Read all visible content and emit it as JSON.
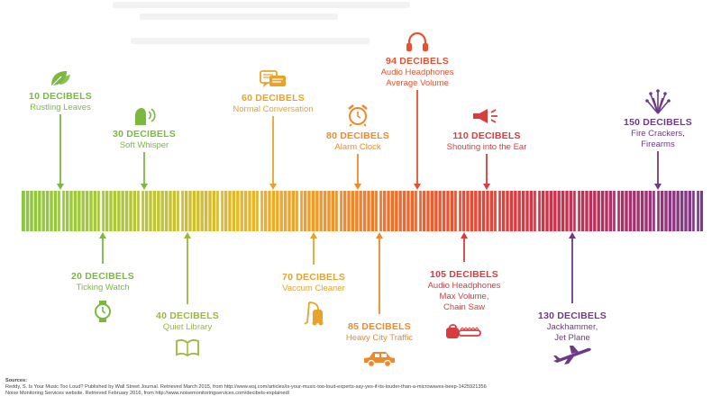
{
  "scale": {
    "colors": [
      "#8cc63f",
      "#a5c93a",
      "#c6c233",
      "#e7b62a",
      "#f0972a",
      "#ef6a2c",
      "#e44a38",
      "#cf3149",
      "#a8306b",
      "#7b3a8e"
    ]
  },
  "levels": [
    {
      "id": "10",
      "db": "10 DECIBELS",
      "lines": [
        "Rustling Leaves"
      ],
      "pos": "above",
      "color": "#7ab93f",
      "icon": "leaf-icon"
    },
    {
      "id": "20",
      "db": "20 DECIBELS",
      "lines": [
        "Ticking Watch"
      ],
      "pos": "below",
      "color": "#7ab93f",
      "icon": "watch-icon"
    },
    {
      "id": "30",
      "db": "30 DECIBELS",
      "lines": [
        "Soft Whisper"
      ],
      "pos": "above",
      "color": "#7ab93f",
      "icon": "whisper-icon"
    },
    {
      "id": "40",
      "db": "40 DECIBELS",
      "lines": [
        "Quiet Library"
      ],
      "pos": "below",
      "color": "#9bb838",
      "icon": "book-icon"
    },
    {
      "id": "60",
      "db": "60 DECIBELS",
      "lines": [
        "Normal Conversation"
      ],
      "pos": "above",
      "color": "#e9a22a",
      "icon": "chat-bubbles-icon"
    },
    {
      "id": "70",
      "db": "70 DECIBELS",
      "lines": [
        "Vaccum Cleaner"
      ],
      "pos": "below",
      "color": "#e9a22a",
      "icon": "vacuum-icon"
    },
    {
      "id": "80",
      "db": "80 DECIBELS",
      "lines": [
        "Alarm Clock"
      ],
      "pos": "above",
      "color": "#ee8a2a",
      "icon": "alarm-clock-icon"
    },
    {
      "id": "85",
      "db": "85 DECIBELS",
      "lines": [
        "Heavy City Traffic"
      ],
      "pos": "below",
      "color": "#ee8a2a",
      "icon": "car-icon"
    },
    {
      "id": "94",
      "db": "94 DECIBELS",
      "lines": [
        "Audio Headphones",
        "Average Volume"
      ],
      "pos": "above",
      "color": "#e8512f",
      "icon": "headphones-icon"
    },
    {
      "id": "105",
      "db": "105 DECIBELS",
      "lines": [
        "Audio Headphones",
        "Max Volume,",
        "Chain Saw"
      ],
      "pos": "below",
      "color": "#d93b3f",
      "icon": "chainsaw-icon"
    },
    {
      "id": "110",
      "db": "110 DECIBELS",
      "lines": [
        "Shouting into the Ear"
      ],
      "pos": "above",
      "color": "#d93b3f",
      "icon": "megaphone-icon"
    },
    {
      "id": "130",
      "db": "130 DECIBELS",
      "lines": [
        "Jackhammer,",
        "Jet Plane"
      ],
      "pos": "below",
      "color": "#6e3a86",
      "icon": "jet-plane-icon"
    },
    {
      "id": "150",
      "db": "150 DECIBELS",
      "lines": [
        "Fire Crackers,",
        "Firearms"
      ],
      "pos": "above",
      "color": "#6e3a86",
      "icon": "fireworks-icon"
    }
  ],
  "sources": {
    "heading": "Sources:",
    "lines": [
      "Reddy, S. Is Your Music Too Loud? Published by Wall Street Journal. Retrieved March 2015, from http://www.wsj.com/articles/is-your-music-too-loud-experts-say-yes-if-its-louder-than-a-microwaves-beep-1425921356",
      "Noise Monitoring Services website. Retrieved February 2016, from http://www.noisemonitoringservices.com/decibels-explained/"
    ]
  }
}
